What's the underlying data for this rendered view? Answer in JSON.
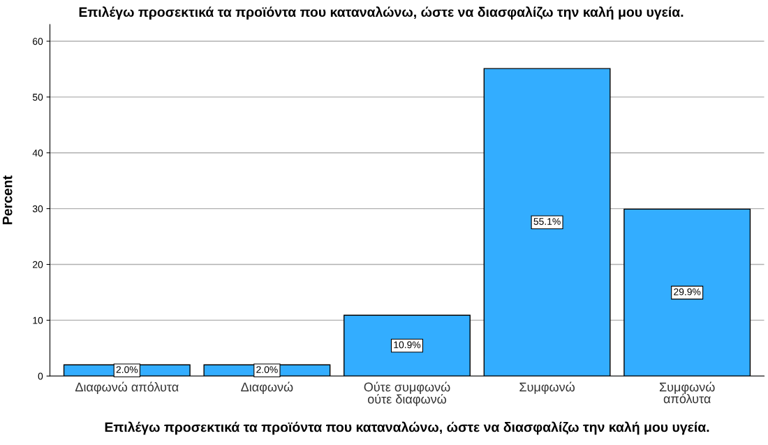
{
  "chart_data": {
    "type": "bar",
    "title": "Επιλέγω προσεκτικά τα προϊόντα που καταναλώνω, ώστε να διασφαλίζω την καλή μου υγεία.",
    "xlabel": "Επιλέγω προσεκτικά τα προϊόντα που καταναλώνω, ώστε να διασφαλίζω την καλή μου υγεία.",
    "ylabel": "Percent",
    "categories": [
      "Διαφωνώ απόλυτα",
      "Διαφωνώ",
      "Ούτε συμφωνώ\nούτε διαφωνώ",
      "Συμφωνώ",
      "Συμφωνώ\nαπόλυτα"
    ],
    "values": [
      2.0,
      2.0,
      10.9,
      55.1,
      29.9
    ],
    "value_labels": [
      "2.0%",
      "2.0%",
      "10.9%",
      "55.1%",
      "29.9%"
    ],
    "color": "#33adff",
    "ylim": [
      0,
      63
    ],
    "yticks": [
      0,
      10,
      20,
      30,
      40,
      50,
      60
    ],
    "grid": "y"
  }
}
